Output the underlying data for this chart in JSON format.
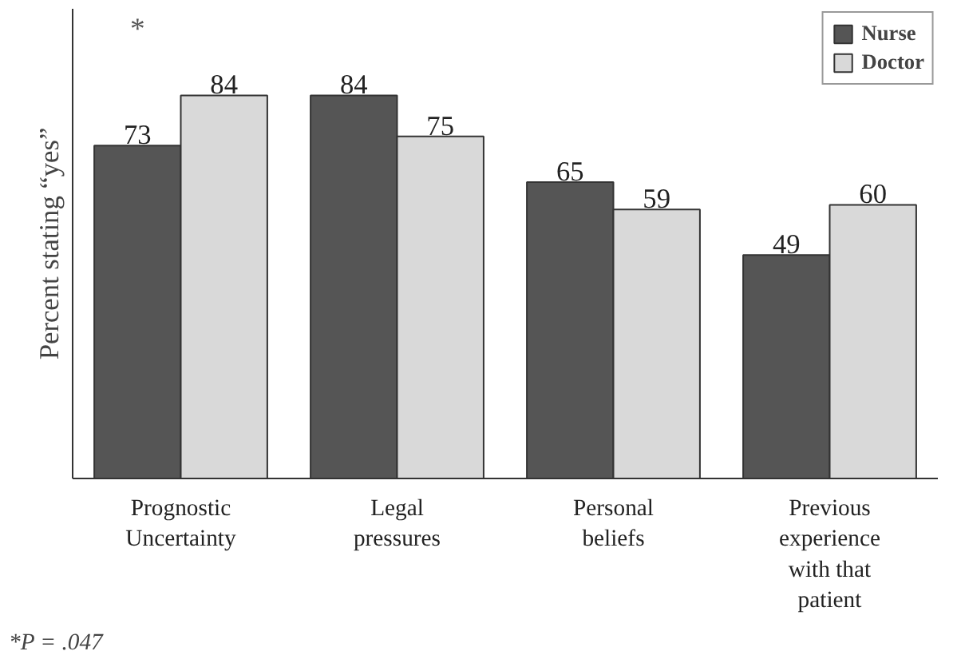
{
  "chart_data": {
    "type": "bar",
    "ylabel": "Percent stating “yes”",
    "categories": [
      "Prognostic\nUncertainty",
      "Legal\npressures",
      "Personal\nbeliefs",
      "Previous\nexperience\nwith that\npatient"
    ],
    "series": [
      {
        "name": "Nurse",
        "color": "#555555",
        "values": [
          73,
          84,
          65,
          49
        ]
      },
      {
        "name": "Doctor",
        "color": "#d9d9d9",
        "values": [
          84,
          75,
          59,
          60
        ]
      }
    ],
    "ylim": [
      0,
      103
    ],
    "data_labels": true,
    "grid": false,
    "legend": "top right",
    "tick_labels": "x",
    "annotations": [
      "*",
      "*P = .047"
    ]
  }
}
